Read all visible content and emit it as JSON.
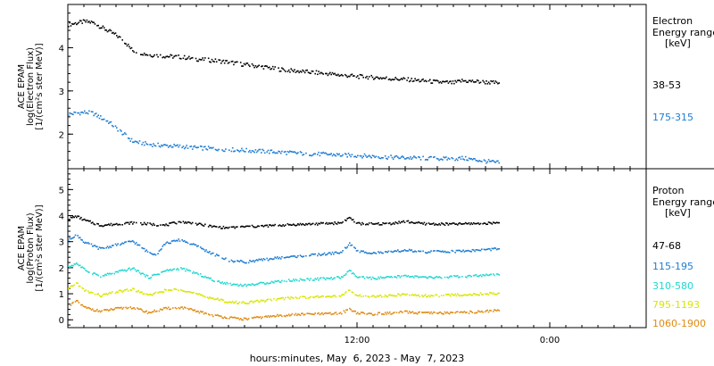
{
  "chart_data": {
    "type": "scatter",
    "xlabel": "hours:minutes, May  6, 2023 - May  7, 2023",
    "x_ticks": [
      "12:00",
      "0:00"
    ],
    "x_range_hours": [
      0,
      36
    ],
    "panels": [
      {
        "name": "electron",
        "ylabel_lines": [
          "ACE EPAM",
          "log(Electron Flux)",
          "[1/(cm²s ster MeV)]"
        ],
        "ylim": [
          1.2,
          5.0
        ],
        "yticks": [
          2,
          3,
          4
        ],
        "legend_title": [
          "Electron",
          "Energy range",
          "[keV]"
        ],
        "series": [
          {
            "name": "38-53",
            "color": "#000000",
            "points": [
              [
                0,
                4.55
              ],
              [
                1,
                4.62
              ],
              [
                1.5,
                4.6
              ],
              [
                2,
                4.5
              ],
              [
                2.5,
                4.4
              ],
              [
                3,
                4.3
              ],
              [
                3.5,
                4.15
              ],
              [
                4,
                3.95
              ],
              [
                5,
                3.85
              ],
              [
                6,
                3.82
              ],
              [
                7,
                3.8
              ],
              [
                8,
                3.75
              ],
              [
                9,
                3.72
              ],
              [
                10,
                3.68
              ],
              [
                11,
                3.62
              ],
              [
                12,
                3.58
              ],
              [
                13,
                3.52
              ],
              [
                14,
                3.48
              ],
              [
                15,
                3.45
              ],
              [
                16,
                3.42
              ],
              [
                17,
                3.38
              ],
              [
                18,
                3.35
              ],
              [
                19,
                3.33
              ],
              [
                20,
                3.3
              ],
              [
                21,
                3.28
              ],
              [
                22,
                3.25
              ],
              [
                23,
                3.22
              ],
              [
                24,
                3.2
              ],
              [
                24.5,
                3.25
              ],
              [
                26.8,
                3.2
              ]
            ]
          },
          {
            "name": "175-315",
            "color": "#1e7dd2",
            "points": [
              [
                0,
                2.48
              ],
              [
                1,
                2.52
              ],
              [
                1.5,
                2.5
              ],
              [
                2,
                2.4
              ],
              [
                2.5,
                2.3
              ],
              [
                3,
                2.15
              ],
              [
                3.5,
                2.0
              ],
              [
                4,
                1.85
              ],
              [
                5,
                1.78
              ],
              [
                6,
                1.75
              ],
              [
                7,
                1.73
              ],
              [
                8,
                1.7
              ],
              [
                9,
                1.68
              ],
              [
                10,
                1.66
              ],
              [
                11,
                1.64
              ],
              [
                12,
                1.62
              ],
              [
                13,
                1.6
              ],
              [
                14,
                1.58
              ],
              [
                15,
                1.56
              ],
              [
                16,
                1.55
              ],
              [
                17,
                1.53
              ],
              [
                18,
                1.52
              ],
              [
                19,
                1.5
              ],
              [
                20,
                1.48
              ],
              [
                21,
                1.47
              ],
              [
                22,
                1.46
              ],
              [
                23,
                1.45
              ],
              [
                24,
                1.44
              ],
              [
                24.5,
                1.46
              ],
              [
                26.8,
                1.35
              ]
            ]
          }
        ]
      },
      {
        "name": "proton",
        "ylabel_lines": [
          "ACE EPAM",
          "log(Proton Flux)",
          "[1/(cm²s ster MeV)]"
        ],
        "ylim": [
          -0.3,
          5.8
        ],
        "yticks": [
          0,
          1,
          2,
          3,
          4,
          5
        ],
        "legend_title": [
          "Proton",
          "Energy range",
          "[keV]"
        ],
        "series": [
          {
            "name": "47-68",
            "color": "#000000",
            "points": [
              [
                0,
                3.9
              ],
              [
                0.5,
                4.0
              ],
              [
                1,
                3.85
              ],
              [
                2,
                3.65
              ],
              [
                3,
                3.7
              ],
              [
                4,
                3.75
              ],
              [
                5,
                3.7
              ],
              [
                6,
                3.65
              ],
              [
                7,
                3.8
              ],
              [
                8,
                3.7
              ],
              [
                9,
                3.6
              ],
              [
                10,
                3.55
              ],
              [
                11,
                3.6
              ],
              [
                12,
                3.62
              ],
              [
                13,
                3.65
              ],
              [
                14,
                3.68
              ],
              [
                15,
                3.7
              ],
              [
                16,
                3.72
              ],
              [
                17,
                3.75
              ],
              [
                17.5,
                3.95
              ],
              [
                18,
                3.72
              ],
              [
                19,
                3.7
              ],
              [
                20,
                3.72
              ],
              [
                21,
                3.8
              ],
              [
                22,
                3.72
              ],
              [
                23,
                3.7
              ],
              [
                24,
                3.7
              ],
              [
                25,
                3.72
              ],
              [
                26.8,
                3.75
              ]
            ]
          },
          {
            "name": "115-195",
            "color": "#1e7dd2",
            "points": [
              [
                0,
                3.1
              ],
              [
                0.5,
                3.3
              ],
              [
                1,
                3.0
              ],
              [
                2,
                2.75
              ],
              [
                3,
                2.9
              ],
              [
                4,
                3.05
              ],
              [
                5,
                2.6
              ],
              [
                5.5,
                2.55
              ],
              [
                6,
                2.95
              ],
              [
                7,
                3.1
              ],
              [
                8,
                2.85
              ],
              [
                9,
                2.55
              ],
              [
                10,
                2.3
              ],
              [
                11,
                2.25
              ],
              [
                12,
                2.32
              ],
              [
                13,
                2.4
              ],
              [
                14,
                2.45
              ],
              [
                15,
                2.5
              ],
              [
                16,
                2.55
              ],
              [
                17,
                2.62
              ],
              [
                17.5,
                2.95
              ],
              [
                18,
                2.65
              ],
              [
                19,
                2.6
              ],
              [
                20,
                2.62
              ],
              [
                21,
                2.7
              ],
              [
                22,
                2.62
              ],
              [
                23,
                2.65
              ],
              [
                24,
                2.65
              ],
              [
                25,
                2.68
              ],
              [
                26.8,
                2.75
              ]
            ]
          },
          {
            "name": "310-580",
            "color": "#20d8d0",
            "points": [
              [
                0,
                2.05
              ],
              [
                0.5,
                2.2
              ],
              [
                1,
                1.95
              ],
              [
                2,
                1.7
              ],
              [
                3,
                1.85
              ],
              [
                4,
                2.0
              ],
              [
                5,
                1.65
              ],
              [
                6,
                1.9
              ],
              [
                7,
                2.0
              ],
              [
                8,
                1.8
              ],
              [
                9,
                1.55
              ],
              [
                10,
                1.4
              ],
              [
                11,
                1.35
              ],
              [
                12,
                1.42
              ],
              [
                13,
                1.5
              ],
              [
                14,
                1.55
              ],
              [
                15,
                1.58
              ],
              [
                16,
                1.6
              ],
              [
                17,
                1.65
              ],
              [
                17.5,
                1.9
              ],
              [
                18,
                1.65
              ],
              [
                19,
                1.62
              ],
              [
                20,
                1.65
              ],
              [
                21,
                1.72
              ],
              [
                22,
                1.65
              ],
              [
                23,
                1.65
              ],
              [
                24,
                1.68
              ],
              [
                25,
                1.7
              ],
              [
                26.8,
                1.75
              ]
            ]
          },
          {
            "name": "795-1193",
            "color": "#d8e600",
            "points": [
              [
                0,
                1.2
              ],
              [
                0.5,
                1.45
              ],
              [
                1,
                1.15
              ],
              [
                2,
                0.95
              ],
              [
                3,
                1.1
              ],
              [
                4,
                1.2
              ],
              [
                5,
                0.95
              ],
              [
                6,
                1.15
              ],
              [
                7,
                1.2
              ],
              [
                8,
                1.0
              ],
              [
                9,
                0.85
              ],
              [
                10,
                0.7
              ],
              [
                11,
                0.68
              ],
              [
                12,
                0.75
              ],
              [
                13,
                0.82
              ],
              [
                14,
                0.88
              ],
              [
                15,
                0.9
              ],
              [
                16,
                0.92
              ],
              [
                17,
                0.95
              ],
              [
                17.5,
                1.15
              ],
              [
                18,
                0.95
              ],
              [
                19,
                0.92
              ],
              [
                20,
                0.95
              ],
              [
                21,
                1.0
              ],
              [
                22,
                0.95
              ],
              [
                23,
                0.95
              ],
              [
                24,
                0.98
              ],
              [
                25,
                1.0
              ],
              [
                26.8,
                1.05
              ]
            ]
          },
          {
            "name": "1060-1900",
            "color": "#e08a10",
            "points": [
              [
                0,
                0.55
              ],
              [
                0.5,
                0.75
              ],
              [
                1,
                0.5
              ],
              [
                2,
                0.35
              ],
              [
                3,
                0.45
              ],
              [
                4,
                0.5
              ],
              [
                5,
                0.3
              ],
              [
                6,
                0.45
              ],
              [
                7,
                0.5
              ],
              [
                8,
                0.35
              ],
              [
                9,
                0.2
              ],
              [
                10,
                0.1
              ],
              [
                11,
                0.05
              ],
              [
                12,
                0.12
              ],
              [
                13,
                0.18
              ],
              [
                14,
                0.22
              ],
              [
                15,
                0.25
              ],
              [
                16,
                0.25
              ],
              [
                17,
                0.28
              ],
              [
                17.5,
                0.45
              ],
              [
                18,
                0.28
              ],
              [
                19,
                0.25
              ],
              [
                20,
                0.28
              ],
              [
                21,
                0.32
              ],
              [
                22,
                0.28
              ],
              [
                23,
                0.28
              ],
              [
                24,
                0.3
              ],
              [
                25,
                0.32
              ],
              [
                26.8,
                0.38
              ]
            ]
          }
        ]
      }
    ]
  }
}
